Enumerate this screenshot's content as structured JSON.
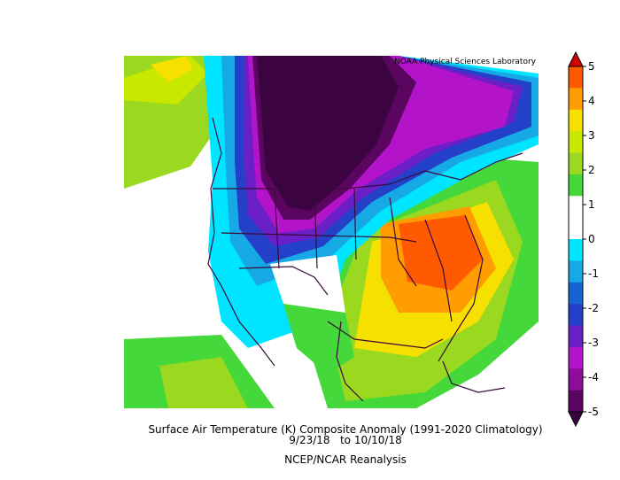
{
  "credit": "NOAA Physical Sciences Laboratory",
  "caption": {
    "title": "Surface Air Temperature (K) Composite Anomaly (1991-2020 Climatology)",
    "dates": "9/23/18   to 10/10/18",
    "source": "NCEP/NCAR Reanalysis"
  },
  "colorbar": {
    "labels": [
      "5",
      "4",
      "3",
      "2",
      "1",
      "0",
      "-1",
      "-2",
      "-3",
      "-4",
      "-5"
    ],
    "colors": [
      "#d20000",
      "#ff5a00",
      "#ff9d00",
      "#f5e000",
      "#c9e800",
      "#9ad920",
      "#44d83a",
      "#ffffff",
      "#ffffff",
      "#00e5ff",
      "#16a9e6",
      "#1763cf",
      "#2540c8",
      "#6b1fc7",
      "#b414c9",
      "#8e0c9c",
      "#5a0660",
      "#3b0340"
    ]
  },
  "map": {
    "colors": {
      "deep_cold": "#3b0340",
      "cold_purple": "#5a0660",
      "magenta": "#b414c9",
      "violet": "#6b1fc7",
      "blue": "#2540c8",
      "mid_blue": "#1763cf",
      "light_blue": "#16a9e6",
      "cyan": "#00e5ff",
      "neutral": "#ffffff",
      "green": "#44d83a",
      "yellow_green": "#9ad920",
      "lime": "#c9e800",
      "yellow": "#f5e000",
      "orange": "#ff9d00",
      "dark_orange": "#ff5a00",
      "boundary": "#3a0a3a"
    }
  }
}
